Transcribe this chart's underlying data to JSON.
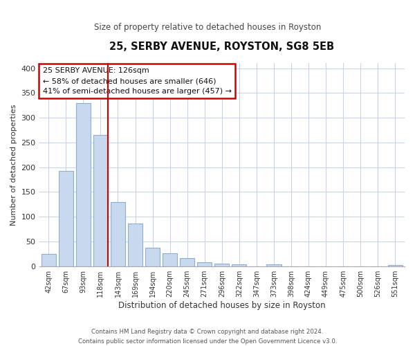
{
  "title": "25, SERBY AVENUE, ROYSTON, SG8 5EB",
  "subtitle": "Size of property relative to detached houses in Royston",
  "xlabel": "Distribution of detached houses by size in Royston",
  "ylabel": "Number of detached properties",
  "bar_labels": [
    "42sqm",
    "67sqm",
    "93sqm",
    "118sqm",
    "143sqm",
    "169sqm",
    "194sqm",
    "220sqm",
    "245sqm",
    "271sqm",
    "296sqm",
    "322sqm",
    "347sqm",
    "373sqm",
    "398sqm",
    "424sqm",
    "449sqm",
    "475sqm",
    "500sqm",
    "526sqm",
    "551sqm"
  ],
  "bar_values": [
    25,
    193,
    330,
    265,
    130,
    86,
    38,
    26,
    17,
    8,
    5,
    4,
    0,
    4,
    0,
    0,
    0,
    0,
    0,
    0,
    3
  ],
  "bar_color": "#c8d8ee",
  "bar_edge_color": "#8aaed4",
  "vline_x": 3.43,
  "vline_color": "#cc0000",
  "annotation_lines": [
    "25 SERBY AVENUE: 126sqm",
    "← 58% of detached houses are smaller (646)",
    "41% of semi-detached houses are larger (457) →"
  ],
  "ylim": [
    0,
    410
  ],
  "yticks": [
    0,
    50,
    100,
    150,
    200,
    250,
    300,
    350,
    400
  ],
  "footer_line1": "Contains HM Land Registry data © Crown copyright and database right 2024.",
  "footer_line2": "Contains public sector information licensed under the Open Government Licence v3.0.",
  "background_color": "#ffffff",
  "grid_color": "#c8d4e8"
}
